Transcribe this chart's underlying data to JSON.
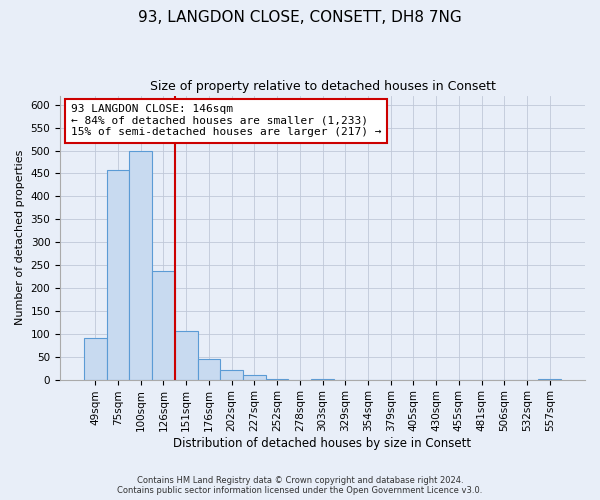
{
  "title": "93, LANGDON CLOSE, CONSETT, DH8 7NG",
  "subtitle": "Size of property relative to detached houses in Consett",
  "xlabel": "Distribution of detached houses by size in Consett",
  "ylabel": "Number of detached properties",
  "bar_labels": [
    "49sqm",
    "75sqm",
    "100sqm",
    "126sqm",
    "151sqm",
    "176sqm",
    "202sqm",
    "227sqm",
    "252sqm",
    "278sqm",
    "303sqm",
    "329sqm",
    "354sqm",
    "379sqm",
    "405sqm",
    "430sqm",
    "455sqm",
    "481sqm",
    "506sqm",
    "532sqm",
    "557sqm"
  ],
  "bar_values": [
    90,
    458,
    500,
    237,
    105,
    45,
    20,
    11,
    2,
    0,
    1,
    0,
    0,
    0,
    0,
    0,
    0,
    0,
    0,
    0,
    1
  ],
  "bar_color": "#c8daf0",
  "bar_edgecolor": "#5b9bd5",
  "vline_color": "#cc0000",
  "annotation_title": "93 LANGDON CLOSE: 146sqm",
  "annotation_line1": "← 84% of detached houses are smaller (1,233)",
  "annotation_line2": "15% of semi-detached houses are larger (217) →",
  "annotation_box_color": "#ffffff",
  "annotation_box_edgecolor": "#cc0000",
  "ylim": [
    0,
    620
  ],
  "yticks": [
    0,
    50,
    100,
    150,
    200,
    250,
    300,
    350,
    400,
    450,
    500,
    550,
    600
  ],
  "background_color": "#e8eef8",
  "plot_bg_color": "#e8eef8",
  "footer1": "Contains HM Land Registry data © Crown copyright and database right 2024.",
  "footer2": "Contains public sector information licensed under the Open Government Licence v3.0.",
  "title_fontsize": 11,
  "subtitle_fontsize": 9,
  "annotation_fontsize": 8,
  "ylabel_fontsize": 8,
  "xlabel_fontsize": 8.5,
  "tick_fontsize": 7.5
}
